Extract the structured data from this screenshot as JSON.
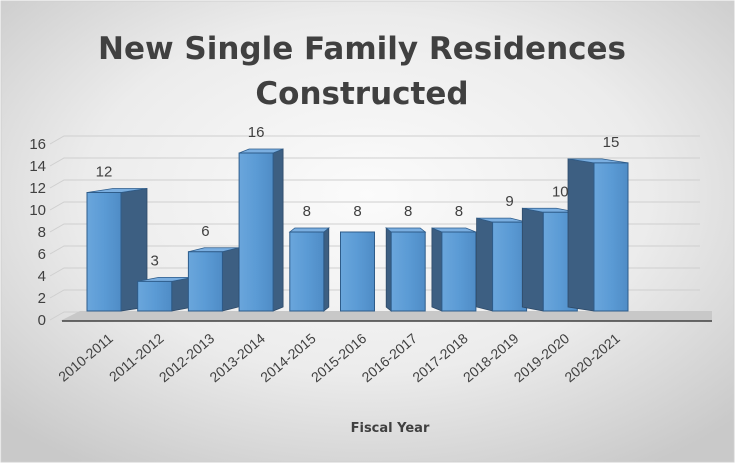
{
  "chart_data": {
    "type": "bar",
    "title_lines": [
      "New Single Family Residences",
      "Constructed"
    ],
    "xlabel": "Fiscal Year",
    "ylabel": "",
    "categories": [
      "2010-2011",
      "2011-2012",
      "2012-2013",
      "2013-2014",
      "2014-2015",
      "2015-2016",
      "2016-2017",
      "2017-2018",
      "2018-2019",
      "2019-2020",
      "2020-2021"
    ],
    "values": [
      12,
      3,
      6,
      16,
      8,
      8,
      8,
      8,
      9,
      10,
      15
    ],
    "data_labels": [
      "12",
      "3",
      "6",
      "16",
      "8",
      "8",
      "8",
      "8",
      "9",
      "10",
      "15"
    ],
    "ylim": [
      0,
      16
    ],
    "yticks": [
      "0",
      "2",
      "4",
      "6",
      "8",
      "10",
      "12",
      "14",
      "16"
    ],
    "style": "3d-clustered-column",
    "grid": true,
    "legend": "none",
    "colors": {
      "bar_front": "#5b9bd5",
      "bar_side": "#3d5f82",
      "bar_top": "#7aaee0",
      "background_light": "#fbfbfb",
      "background_dark": "#c9c9c9",
      "floor": "#c8c8c8",
      "axis": "#404040",
      "text": "#404040"
    }
  }
}
